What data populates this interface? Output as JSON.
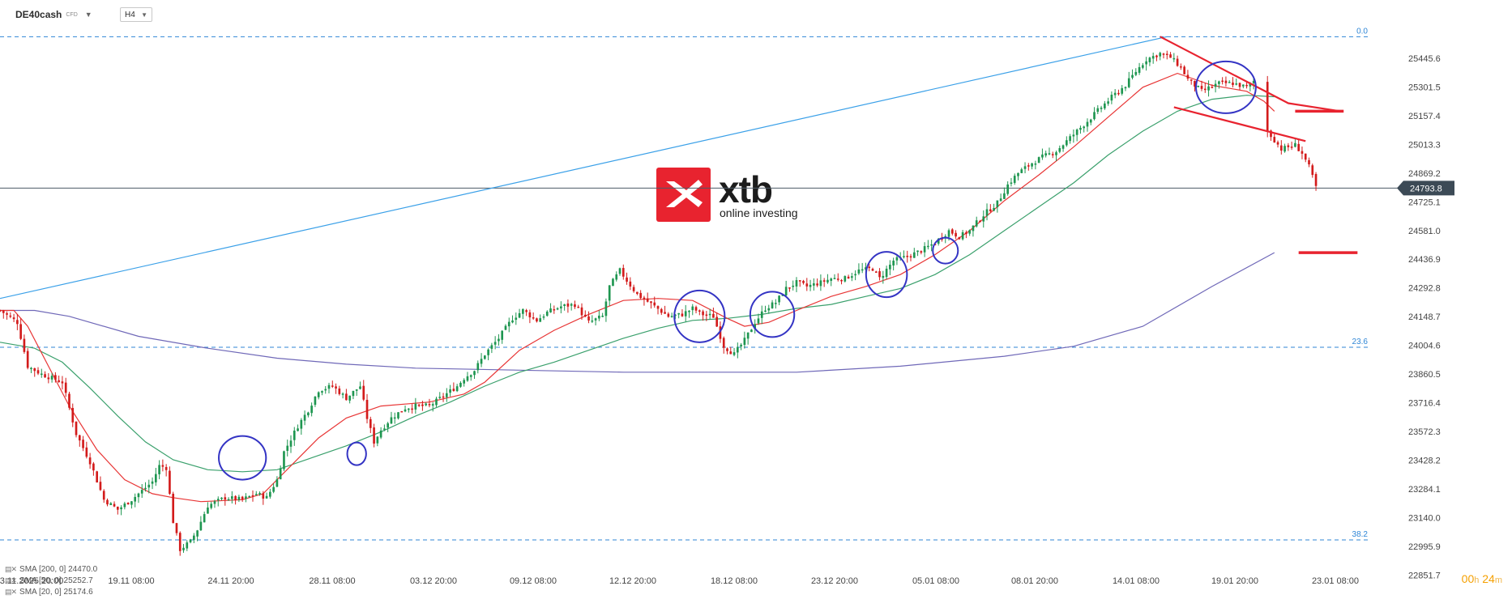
{
  "header": {
    "symbol": "DE40cash",
    "badge": "CFD",
    "timeframe": "H4"
  },
  "logo": {
    "brand": "xtb",
    "tagline": "online investing",
    "color": "#e8232f"
  },
  "legend": [
    {
      "label": "SMA [200, 0] 24470.0"
    },
    {
      "label": "SMA [50, 0] 25252.7"
    },
    {
      "label": "SMA [20, 0] 25174.6"
    }
  ],
  "countdown": {
    "hours": "00",
    "h": "h",
    "minutes": "24",
    "m": "m"
  },
  "chart_data": {
    "type": "candlestick",
    "title": "",
    "ylim": [
      22780,
      25600
    ],
    "y_ticks": [
      25445.6,
      25301.5,
      25157.4,
      25013.3,
      24869.2,
      24725.1,
      24581.0,
      24436.9,
      24292.8,
      24148.7,
      24004.6,
      23860.5,
      23716.4,
      23572.3,
      23428.2,
      23284.1,
      23140.0,
      22995.9,
      22851.7
    ],
    "x_labels": [
      "13.11.2025  20:00",
      "19.11  08:00",
      "24.11  20:00",
      "28.11  08:00",
      "03.12  20:00",
      "09.12  08:00",
      "12.12  20:00",
      "18.12  08:00",
      "23.12  20:00",
      "05.01  08:00",
      "08.01  20:00",
      "14.01  08:00",
      "19.01  20:00",
      "23.01  08:00"
    ],
    "current_price": {
      "value": 24793.8,
      "label": "24793.8"
    },
    "fib_levels": [
      {
        "label": "0.0",
        "value": 25554
      },
      {
        "label": "23.6",
        "value": 23995
      },
      {
        "label": "38.2",
        "value": 23028
      }
    ],
    "close_path": [
      [
        0,
        24180
      ],
      [
        5,
        24120
      ],
      [
        8,
        23900
      ],
      [
        12,
        23860
      ],
      [
        18,
        23820
      ],
      [
        22,
        23560
      ],
      [
        26,
        23420
      ],
      [
        30,
        23230
      ],
      [
        34,
        23180
      ],
      [
        38,
        23230
      ],
      [
        42,
        23290
      ],
      [
        44,
        23320
      ],
      [
        46,
        23400
      ],
      [
        48,
        23390
      ],
      [
        50,
        23120
      ],
      [
        52,
        22980
      ],
      [
        55,
        23020
      ],
      [
        57,
        23080
      ],
      [
        60,
        23200
      ],
      [
        65,
        23240
      ],
      [
        70,
        23230
      ],
      [
        74,
        23260
      ],
      [
        77,
        23240
      ],
      [
        80,
        23330
      ],
      [
        82,
        23470
      ],
      [
        86,
        23600
      ],
      [
        89,
        23680
      ],
      [
        92,
        23780
      ],
      [
        96,
        23800
      ],
      [
        100,
        23740
      ],
      [
        104,
        23800
      ],
      [
        106,
        23640
      ],
      [
        108,
        23520
      ],
      [
        110,
        23580
      ],
      [
        113,
        23640
      ],
      [
        117,
        23690
      ],
      [
        120,
        23700
      ],
      [
        124,
        23700
      ],
      [
        128,
        23750
      ],
      [
        132,
        23800
      ],
      [
        134,
        23840
      ],
      [
        137,
        23880
      ],
      [
        140,
        23960
      ],
      [
        144,
        24040
      ],
      [
        148,
        24140
      ],
      [
        151,
        24180
      ],
      [
        155,
        24130
      ],
      [
        158,
        24170
      ],
      [
        162,
        24200
      ],
      [
        166,
        24210
      ],
      [
        170,
        24120
      ],
      [
        174,
        24150
      ],
      [
        176,
        24300
      ],
      [
        179,
        24380
      ],
      [
        181,
        24330
      ],
      [
        184,
        24260
      ],
      [
        189,
        24200
      ],
      [
        193,
        24150
      ],
      [
        197,
        24160
      ],
      [
        200,
        24190
      ],
      [
        203,
        24160
      ],
      [
        206,
        24150
      ],
      [
        209,
        24000
      ],
      [
        212,
        23960
      ],
      [
        215,
        24030
      ],
      [
        218,
        24120
      ],
      [
        221,
        24190
      ],
      [
        224,
        24220
      ],
      [
        227,
        24290
      ],
      [
        230,
        24320
      ],
      [
        233,
        24300
      ],
      [
        237,
        24320
      ],
      [
        240,
        24340
      ],
      [
        244,
        24340
      ],
      [
        248,
        24380
      ],
      [
        252,
        24390
      ],
      [
        254,
        24340
      ],
      [
        258,
        24430
      ],
      [
        262,
        24450
      ],
      [
        266,
        24480
      ],
      [
        270,
        24520
      ],
      [
        274,
        24580
      ],
      [
        277,
        24550
      ],
      [
        280,
        24580
      ],
      [
        284,
        24660
      ],
      [
        288,
        24720
      ],
      [
        291,
        24810
      ],
      [
        294,
        24870
      ],
      [
        298,
        24920
      ],
      [
        301,
        24950
      ],
      [
        305,
        24980
      ],
      [
        308,
        25030
      ],
      [
        311,
        25080
      ],
      [
        314,
        25130
      ],
      [
        318,
        25200
      ],
      [
        321,
        25250
      ],
      [
        325,
        25310
      ],
      [
        328,
        25380
      ],
      [
        331,
        25440
      ],
      [
        335,
        25470
      ],
      [
        338,
        25450
      ],
      [
        341,
        25400
      ],
      [
        343,
        25340
      ],
      [
        347,
        25280
      ],
      [
        352,
        25320
      ],
      [
        356,
        25320
      ],
      [
        360,
        25300
      ],
      [
        362,
        25330
      ],
      [
        366,
        25080
      ],
      [
        370,
        24990
      ],
      [
        374,
        25010
      ],
      [
        376,
        24970
      ],
      [
        378,
        24900
      ],
      [
        380,
        24800
      ]
    ],
    "sma20": [
      [
        0,
        24180
      ],
      [
        4,
        24180
      ],
      [
        8,
        24100
      ],
      [
        14,
        23900
      ],
      [
        20,
        23700
      ],
      [
        28,
        23480
      ],
      [
        36,
        23330
      ],
      [
        44,
        23260
      ],
      [
        50,
        23240
      ],
      [
        58,
        23220
      ],
      [
        70,
        23230
      ],
      [
        76,
        23260
      ],
      [
        84,
        23400
      ],
      [
        92,
        23540
      ],
      [
        100,
        23640
      ],
      [
        110,
        23700
      ],
      [
        124,
        23720
      ],
      [
        134,
        23760
      ],
      [
        140,
        23820
      ],
      [
        150,
        23980
      ],
      [
        160,
        24080
      ],
      [
        170,
        24160
      ],
      [
        180,
        24230
      ],
      [
        190,
        24240
      ],
      [
        200,
        24230
      ],
      [
        210,
        24140
      ],
      [
        215,
        24100
      ],
      [
        222,
        24120
      ],
      [
        230,
        24180
      ],
      [
        240,
        24250
      ],
      [
        250,
        24300
      ],
      [
        260,
        24360
      ],
      [
        270,
        24460
      ],
      [
        280,
        24580
      ],
      [
        290,
        24730
      ],
      [
        300,
        24860
      ],
      [
        310,
        25000
      ],
      [
        320,
        25150
      ],
      [
        330,
        25300
      ],
      [
        340,
        25370
      ],
      [
        350,
        25310
      ],
      [
        360,
        25280
      ],
      [
        365,
        25230
      ],
      [
        368,
        25180
      ]
    ],
    "sma50": [
      [
        0,
        24020
      ],
      [
        10,
        23990
      ],
      [
        18,
        23920
      ],
      [
        26,
        23790
      ],
      [
        34,
        23650
      ],
      [
        42,
        23520
      ],
      [
        50,
        23430
      ],
      [
        60,
        23380
      ],
      [
        70,
        23370
      ],
      [
        80,
        23380
      ],
      [
        90,
        23440
      ],
      [
        100,
        23500
      ],
      [
        110,
        23570
      ],
      [
        120,
        23650
      ],
      [
        130,
        23720
      ],
      [
        140,
        23800
      ],
      [
        150,
        23870
      ],
      [
        160,
        23920
      ],
      [
        170,
        23980
      ],
      [
        180,
        24040
      ],
      [
        190,
        24090
      ],
      [
        200,
        24130
      ],
      [
        210,
        24140
      ],
      [
        220,
        24160
      ],
      [
        230,
        24190
      ],
      [
        240,
        24210
      ],
      [
        250,
        24250
      ],
      [
        260,
        24290
      ],
      [
        270,
        24360
      ],
      [
        280,
        24460
      ],
      [
        290,
        24580
      ],
      [
        300,
        24700
      ],
      [
        310,
        24820
      ],
      [
        320,
        24960
      ],
      [
        330,
        25080
      ],
      [
        340,
        25180
      ],
      [
        350,
        25240
      ],
      [
        360,
        25260
      ],
      [
        368,
        25252.7
      ]
    ],
    "sma200": [
      [
        0,
        24180
      ],
      [
        10,
        24180
      ],
      [
        20,
        24150
      ],
      [
        40,
        24050
      ],
      [
        60,
        23990
      ],
      [
        80,
        23940
      ],
      [
        100,
        23910
      ],
      [
        120,
        23890
      ],
      [
        150,
        23880
      ],
      [
        180,
        23870
      ],
      [
        200,
        23870
      ],
      [
        230,
        23870
      ],
      [
        260,
        23900
      ],
      [
        290,
        23950
      ],
      [
        310,
        24000
      ],
      [
        330,
        24100
      ],
      [
        350,
        24300
      ],
      [
        368,
        24470.0
      ]
    ],
    "trendlines": {
      "ascending": [
        [
          0,
          24240
        ],
        [
          337,
          25554
        ]
      ],
      "channel_upper": [
        [
          335,
          25554
        ],
        [
          372,
          25220
        ],
        [
          387,
          25180
        ]
      ],
      "channel_lower": [
        [
          339,
          25200
        ],
        [
          377,
          25030
        ]
      ]
    },
    "targets": [
      {
        "x1": 374,
        "x2": 388,
        "value": 25180
      },
      {
        "x1": 375,
        "x2": 392,
        "value": 24470
      }
    ],
    "circles": [
      {
        "x": 70,
        "value": 23440,
        "rx": 15,
        "ry": 27
      },
      {
        "x": 103,
        "value": 23460,
        "rx": 6,
        "ry": 14
      },
      {
        "x": 202,
        "value": 24150,
        "rx": 16,
        "ry": 32
      },
      {
        "x": 223,
        "value": 24160,
        "rx": 14,
        "ry": 28
      },
      {
        "x": 256,
        "value": 24360,
        "rx": 13,
        "ry": 28
      },
      {
        "x": 273,
        "value": 24480,
        "rx": 8,
        "ry": 16
      },
      {
        "x": 354,
        "value": 25300,
        "rx": 19,
        "ry": 32
      }
    ],
    "x_range": [
      0,
      420
    ],
    "grid": false,
    "colors": {
      "up": "#1e9650",
      "down": "#d31b1b",
      "sma20": "#e83535",
      "sma50": "#3aa06c",
      "sma200": "#6f68b8",
      "fib": "#2f86d6",
      "ascending": "#3aa0e8",
      "channel": "#e8232f",
      "circle": "#3434c4",
      "price_line": "#4c5a66",
      "price_box": "#3c4a56"
    }
  }
}
